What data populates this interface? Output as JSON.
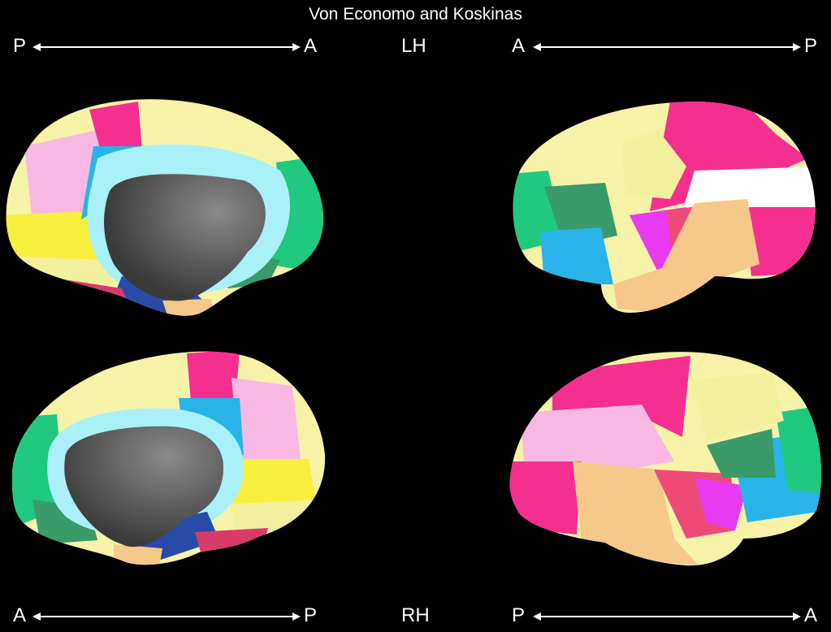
{
  "title": "Von Economo and Koskinas",
  "top": {
    "left_axis": {
      "start": "P",
      "end": "A"
    },
    "hemisphere": "LH",
    "right_axis": {
      "start": "A",
      "end": "P"
    }
  },
  "bottom": {
    "left_axis": {
      "start": "A",
      "end": "P"
    },
    "hemisphere": "RH",
    "right_axis": {
      "start": "P",
      "end": "A"
    }
  },
  "colors": {
    "background": "#000000",
    "cream": "#f6f3a8",
    "pale_yellow": "#f2ef9e",
    "yellow": "#f8ee3e",
    "pink": "#f42f8f",
    "light_pink": "#f8b8e4",
    "light_blue": "#a9f0f8",
    "cyan": "#28b4e8",
    "green": "#20c880",
    "dark_green": "#3a9a6a",
    "peach": "#f6c88a",
    "magenta": "#e83af0",
    "salmon": "#ee4a78",
    "navy": "#2a4aa8",
    "medial_wall": "#444444"
  }
}
